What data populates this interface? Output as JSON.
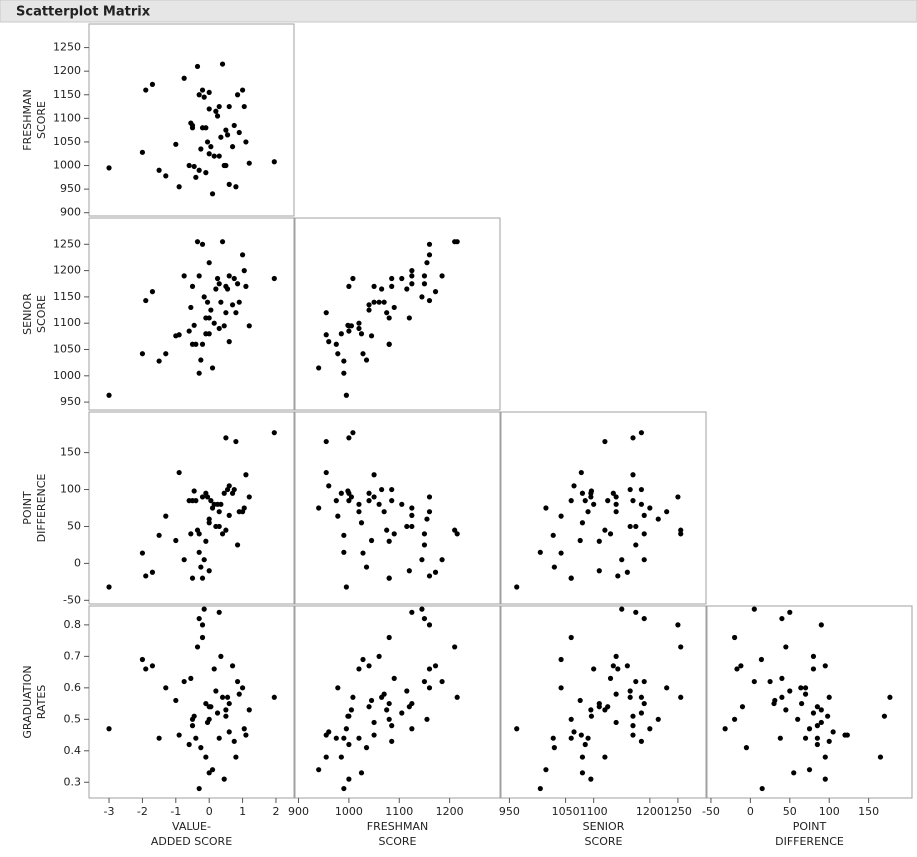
{
  "title": "Scatterplot Matrix",
  "chart_data": {
    "type": "scatter-matrix",
    "color": "#000000",
    "variables": [
      {
        "labels": [
          "VALUE-",
          "ADDED SCORE"
        ],
        "lim": [
          -3.6,
          2.54
        ],
        "xticks": [
          -3,
          -2,
          -1,
          0,
          1,
          2
        ],
        "values": [
          -3.0,
          -2.0,
          -1.9,
          -1.7,
          -1.5,
          -1.3,
          -1.0,
          -0.9,
          -0.75,
          -0.6,
          -0.55,
          -0.5,
          -0.45,
          -0.4,
          -0.35,
          -0.3,
          -0.3,
          -0.25,
          -0.2,
          -0.15,
          -0.1,
          -0.1,
          -0.05,
          0.0,
          0.0,
          0.05,
          0.1,
          0.15,
          0.2,
          0.25,
          0.3,
          0.3,
          0.35,
          0.4,
          0.45,
          0.5,
          0.55,
          0.6,
          0.6,
          0.7,
          0.75,
          0.8,
          0.85,
          0.9,
          1.0,
          1.05,
          1.1,
          1.2,
          1.95,
          -0.2,
          0.0,
          0.5,
          -0.5
        ]
      },
      {
        "labels": [
          "FRESHMAN",
          "SCORE"
        ],
        "lim": [
          893,
          1300
        ],
        "xticks": [
          900,
          1000,
          1100,
          1200
        ],
        "yticks": [
          900,
          950,
          1000,
          1050,
          1100,
          1150,
          1200,
          1250
        ],
        "values": [
          995,
          1028,
          1160,
          1172,
          990,
          978,
          1045,
          955,
          1185,
          1000,
          1090,
          1085,
          998,
          975,
          1210,
          1150,
          990,
          1035,
          1160,
          1145,
          1080,
          985,
          1050,
          1155,
          1025,
          1040,
          940,
          1020,
          1115,
          1105,
          1125,
          1020,
          1060,
          1215,
          1000,
          1075,
          1065,
          1125,
          960,
          1040,
          1085,
          955,
          1150,
          1070,
          1160,
          1125,
          1050,
          1005,
          1008,
          1080,
          1120,
          1000,
          1080
        ]
      },
      {
        "labels": [
          "SENIOR",
          "SCORE"
        ],
        "lim": [
          935,
          1300
        ],
        "xticks": [
          950,
          1050,
          1100,
          1200,
          1250
        ],
        "yticks": [
          950,
          1000,
          1050,
          1100,
          1150,
          1200,
          1250
        ],
        "values": [
          963,
          1042,
          1143,
          1160,
          1028,
          1042,
          1076,
          1078,
          1190,
          1085,
          1130,
          1170,
          1096,
          1060,
          1255,
          1190,
          1005,
          1030,
          1250,
          1150,
          1110,
          1080,
          1140,
          1215,
          1080,
          1125,
          1015,
          1100,
          1165,
          1185,
          1175,
          1090,
          1140,
          1255,
          1095,
          1120,
          1165,
          1190,
          1065,
          1135,
          1185,
          1120,
          1175,
          1140,
          1230,
          1200,
          1170,
          1095,
          1185,
          1060,
          1110,
          1170,
          1060
        ]
      },
      {
        "labels": [
          "POINT",
          "DIFFERENCE"
        ],
        "lim": [
          -55,
          205
        ],
        "xticks": [
          -50,
          0,
          50,
          100,
          150
        ],
        "yticks": [
          -50,
          0,
          50,
          100,
          150
        ],
        "values": [
          -32,
          14,
          -17,
          -12,
          38,
          64,
          31,
          123,
          5,
          85,
          40,
          85,
          98,
          85,
          45,
          40,
          15,
          -5,
          90,
          5,
          30,
          95,
          90,
          60,
          55,
          85,
          75,
          80,
          50,
          80,
          50,
          70,
          80,
          40,
          95,
          45,
          100,
          65,
          105,
          95,
          100,
          165,
          25,
          70,
          70,
          75,
          120,
          90,
          177,
          -20,
          -10,
          170,
          -20
        ]
      },
      {
        "labels": [
          "GRADUATION",
          "RATES"
        ],
        "lim": [
          0.25,
          0.86
        ],
        "yticks": [
          0.3,
          0.4,
          0.5,
          0.6,
          0.7,
          0.8
        ],
        "values": [
          0.47,
          0.69,
          0.66,
          0.67,
          0.44,
          0.6,
          0.56,
          0.45,
          0.62,
          0.42,
          0.63,
          0.48,
          0.51,
          0.44,
          0.73,
          0.82,
          0.28,
          0.41,
          0.8,
          0.85,
          0.55,
          0.38,
          0.49,
          0.5,
          0.33,
          0.54,
          0.34,
          0.66,
          0.59,
          0.52,
          0.84,
          0.44,
          0.7,
          0.57,
          0.31,
          0.53,
          0.57,
          0.55,
          0.46,
          0.67,
          0.43,
          0.38,
          0.62,
          0.58,
          0.6,
          0.47,
          0.45,
          0.53,
          0.57,
          0.76,
          0.54,
          0.51,
          0.5
        ]
      }
    ]
  }
}
